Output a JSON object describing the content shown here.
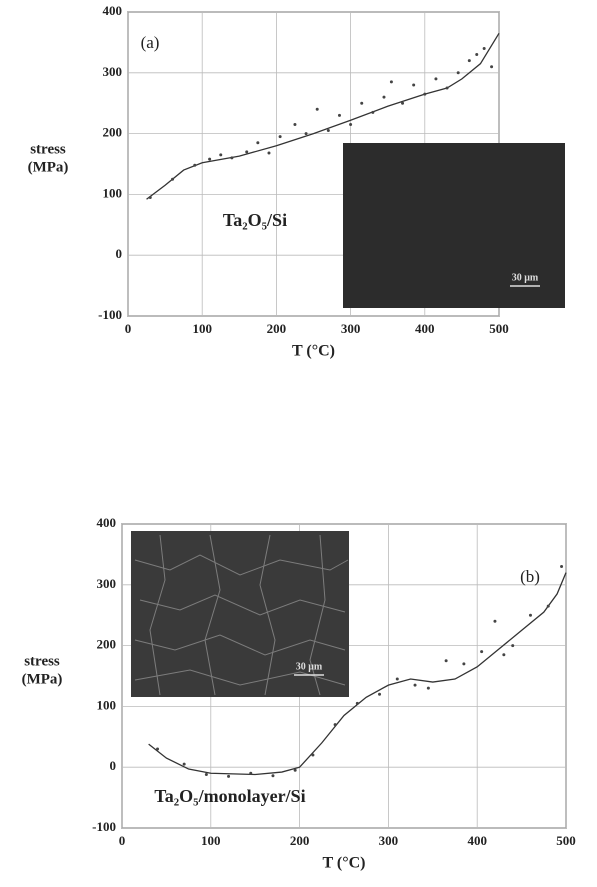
{
  "chart_data": [
    {
      "type": "line",
      "panel_label": "(a)",
      "annotation": "Ta₂O₅/Si",
      "inset_scale_label": "30 μm",
      "xlabel": "T (°C)",
      "ylabel": [
        "stress",
        "(MPa)"
      ],
      "xlim": [
        0,
        500
      ],
      "xticks": [
        0,
        100,
        200,
        300,
        400,
        500
      ],
      "ylim": [
        -100,
        400
      ],
      "yticks": [
        -100,
        0,
        100,
        200,
        300,
        400
      ],
      "grid": true,
      "series": [
        {
          "style": "line",
          "color": "#333333",
          "x": [
            25,
            50,
            75,
            100,
            150,
            200,
            250,
            300,
            350,
            400,
            430,
            450,
            475,
            500
          ],
          "values": [
            92,
            115,
            140,
            152,
            163,
            180,
            200,
            222,
            245,
            265,
            275,
            290,
            315,
            365
          ]
        },
        {
          "style": "points",
          "color": "#444444",
          "x": [
            30,
            60,
            90,
            110,
            125,
            140,
            160,
            175,
            190,
            205,
            225,
            240,
            255,
            270,
            285,
            300,
            315,
            330,
            345,
            355,
            370,
            385,
            400,
            415,
            430,
            445,
            460,
            470,
            480,
            490
          ],
          "values": [
            95,
            125,
            148,
            158,
            165,
            160,
            170,
            185,
            168,
            195,
            215,
            200,
            240,
            205,
            230,
            215,
            250,
            235,
            260,
            285,
            250,
            280,
            265,
            290,
            275,
            300,
            320,
            330,
            340,
            310
          ]
        }
      ]
    },
    {
      "type": "line",
      "panel_label": "(b)",
      "annotation": "Ta₂O₅/monolayer/Si",
      "inset_scale_label": "30 μm",
      "xlabel": "T (°C)",
      "ylabel": [
        "stress",
        "(MPa)"
      ],
      "xlim": [
        0,
        500
      ],
      "xticks": [
        0,
        100,
        200,
        300,
        400,
        500
      ],
      "ylim": [
        -100,
        400
      ],
      "yticks": [
        -100,
        0,
        100,
        200,
        300,
        400
      ],
      "grid": true,
      "series": [
        {
          "style": "line",
          "color": "#333333",
          "x": [
            30,
            50,
            75,
            100,
            150,
            180,
            200,
            225,
            250,
            275,
            300,
            325,
            350,
            375,
            400,
            425,
            450,
            475,
            490,
            500
          ],
          "values": [
            38,
            15,
            -3,
            -10,
            -12,
            -8,
            0,
            40,
            85,
            115,
            135,
            145,
            140,
            145,
            165,
            195,
            225,
            255,
            285,
            320
          ]
        },
        {
          "style": "points",
          "color": "#444444",
          "x": [
            40,
            70,
            95,
            120,
            145,
            170,
            195,
            215,
            240,
            265,
            290,
            310,
            330,
            345,
            365,
            385,
            405,
            420,
            430,
            440,
            460,
            480,
            495
          ],
          "values": [
            30,
            5,
            -12,
            -15,
            -10,
            -14,
            -5,
            20,
            70,
            105,
            120,
            145,
            135,
            130,
            175,
            170,
            190,
            240,
            185,
            200,
            250,
            265,
            330
          ]
        }
      ]
    }
  ]
}
